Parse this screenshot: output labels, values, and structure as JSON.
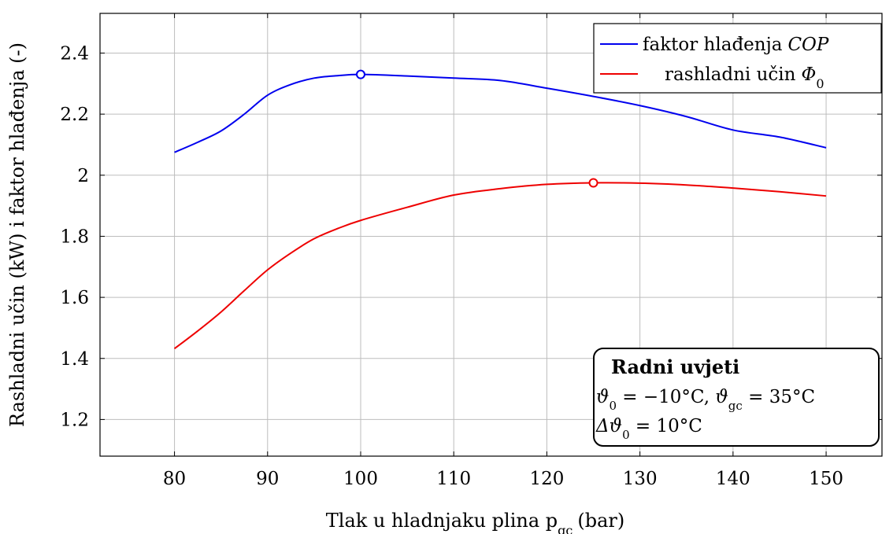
{
  "chart_data": {
    "type": "line",
    "xlabel": "Tlak u hladnjaku plina p",
    "xlabel_sub": "gc",
    "xlabel_unit": "(bar)",
    "ylabel": "Rashladni učin (kW) i faktor hlađenja (-)",
    "xlim": [
      72,
      156
    ],
    "ylim": [
      1.08,
      2.53
    ],
    "xticks": [
      80,
      90,
      100,
      110,
      120,
      130,
      140,
      150
    ],
    "yticks": [
      1.2,
      1.4,
      1.6,
      1.8,
      2.0,
      2.2,
      2.4
    ],
    "ytick_labels": [
      "1.2",
      "1.4",
      "1.6",
      "1.8",
      "2",
      "2.2",
      "2.4"
    ],
    "grid": true,
    "legend_position": "top-right",
    "series": [
      {
        "name": "faktor hlađenja COP",
        "color": "#0000ee",
        "x": [
          80,
          82.5,
          85,
          87.5,
          90,
          92.5,
          95,
          97.5,
          100,
          105,
          110,
          115,
          120,
          125,
          130,
          135,
          140,
          145,
          150
        ],
        "y": [
          2.075,
          2.108,
          2.145,
          2.2,
          2.262,
          2.297,
          2.318,
          2.326,
          2.33,
          2.325,
          2.318,
          2.31,
          2.285,
          2.258,
          2.228,
          2.192,
          2.148,
          2.125,
          2.09
        ],
        "marker": {
          "x": 100,
          "y": 2.33
        }
      },
      {
        "name": "rashladni učin Φ0",
        "color": "#ee0000",
        "x": [
          80,
          82.5,
          85,
          87.5,
          90,
          92.5,
          95,
          97.5,
          100,
          105,
          110,
          115,
          120,
          125,
          130,
          135,
          140,
          145,
          150
        ],
        "y": [
          1.432,
          1.49,
          1.552,
          1.622,
          1.69,
          1.745,
          1.792,
          1.825,
          1.852,
          1.895,
          1.935,
          1.956,
          1.97,
          1.975,
          1.974,
          1.968,
          1.958,
          1.946,
          1.932
        ],
        "marker": {
          "x": 125,
          "y": 1.975
        }
      }
    ],
    "legend": {
      "cop_prefix": "faktor hlađenja",
      "cop_symbol": "COP",
      "phi_prefix": "rashladni učin",
      "phi_symbol": "Φ",
      "phi_sub": "0"
    },
    "annotation": {
      "title": "Radni uvjeti",
      "line1_a": "ϑ",
      "line1_a_sub": "0",
      "line1_b": " = −10°C, ",
      "line1_c": "ϑ",
      "line1_c_sub": "gc",
      "line1_d": " = 35°C",
      "line2_a": "Δϑ",
      "line2_a_sub": "0",
      "line2_b": " = 10°C"
    }
  }
}
